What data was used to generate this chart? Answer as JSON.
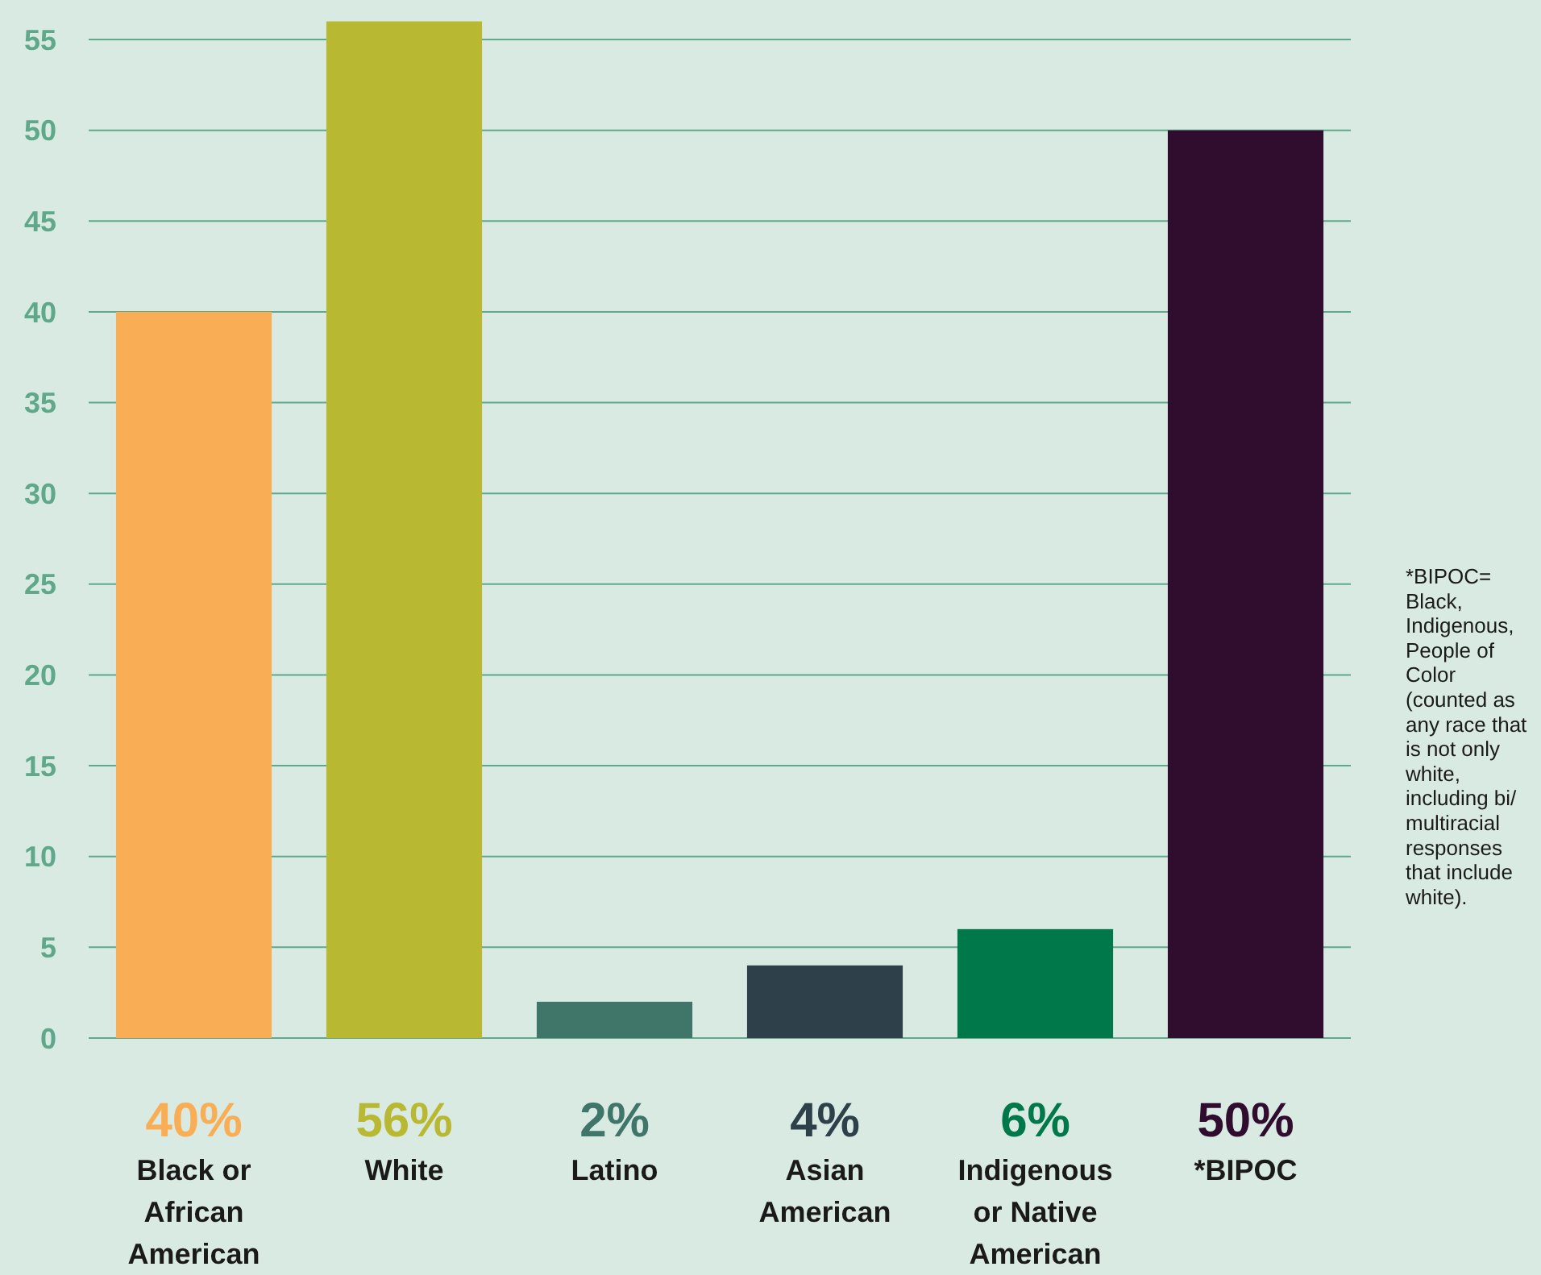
{
  "chart_data": {
    "type": "bar",
    "categories": [
      "Black or African American",
      "White",
      "Latino",
      "Asian American",
      "Indigenous or Native American",
      "*BIPOC"
    ],
    "values": [
      40,
      56,
      2,
      4,
      6,
      50
    ],
    "colors": [
      "#f9ad55",
      "#b8b832",
      "#40756a",
      "#2e414b",
      "#00784a",
      "#300c2f"
    ],
    "value_labels": [
      "40%",
      "56%",
      "2%",
      "4%",
      "6%",
      "50%"
    ],
    "ylim": [
      0,
      57
    ],
    "yticks": [
      0,
      5,
      10,
      15,
      20,
      25,
      30,
      35,
      40,
      45,
      50,
      55
    ],
    "grid": "y",
    "annotations": [
      "*BIPOC= Black, Indigenous, People of Color (counted as any race that is not only white, including bi/multiracial responses that include white)."
    ]
  }
}
